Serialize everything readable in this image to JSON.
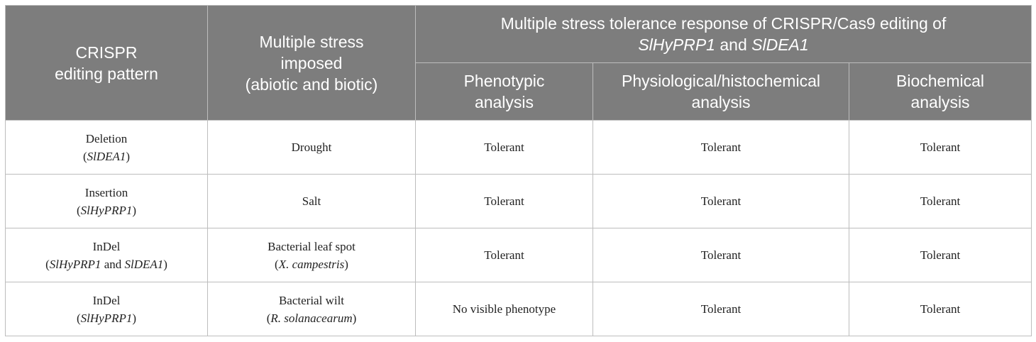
{
  "header": {
    "col1": [
      "CRISPR",
      "editing pattern"
    ],
    "col2": [
      "Multiple stress",
      "imposed",
      "(abiotic and biotic)"
    ],
    "group": {
      "line1": "Multiple stress tolerance response of CRISPR/Cas9 editing of",
      "gene1": "SlHyPRP1",
      "and": " and ",
      "gene2": "SlDEA1"
    },
    "sub1": [
      "Phenotypic",
      "analysis"
    ],
    "sub2": [
      "Physiological/histochemical",
      "analysis"
    ],
    "sub3": [
      "Biochemical",
      "analysis"
    ]
  },
  "rows": [
    {
      "pattern": "Deletion",
      "genes": [
        {
          "text": "(",
          "italic": false
        },
        {
          "text": "SlDEA1",
          "italic": true
        },
        {
          "text": ")",
          "italic": false
        }
      ],
      "stress": "Drought",
      "stress_detail": "",
      "phenotypic": "Tolerant",
      "physiological": "Tolerant",
      "biochemical": "Tolerant"
    },
    {
      "pattern": "Insertion",
      "genes": [
        {
          "text": "(",
          "italic": false
        },
        {
          "text": "SlHyPRP1",
          "italic": true
        },
        {
          "text": ")",
          "italic": false
        }
      ],
      "stress": "Salt",
      "stress_detail": "",
      "phenotypic": "Tolerant",
      "physiological": "Tolerant",
      "biochemical": "Tolerant"
    },
    {
      "pattern": "InDel",
      "genes": [
        {
          "text": "(",
          "italic": false
        },
        {
          "text": "SlHyPRP1",
          "italic": true
        },
        {
          "text": " and ",
          "italic": false
        },
        {
          "text": "SlDEA1",
          "italic": true
        },
        {
          "text": ")",
          "italic": false
        }
      ],
      "stress": "Bacterial leaf spot",
      "stress_detail_parts": [
        {
          "text": "(",
          "italic": false
        },
        {
          "text": "X. campestris",
          "italic": true
        },
        {
          "text": ")",
          "italic": false
        }
      ],
      "phenotypic": "Tolerant",
      "physiological": "Tolerant",
      "biochemical": "Tolerant"
    },
    {
      "pattern": "InDel",
      "genes": [
        {
          "text": "(",
          "italic": false
        },
        {
          "text": "SlHyPRP1",
          "italic": true
        },
        {
          "text": ")",
          "italic": false
        }
      ],
      "stress": "Bacterial wilt",
      "stress_detail_parts": [
        {
          "text": "(",
          "italic": false
        },
        {
          "text": "R. solanacearum",
          "italic": true
        },
        {
          "text": ")",
          "italic": false
        }
      ],
      "phenotypic": "No visible phenotype",
      "physiological": "Tolerant",
      "biochemical": "Tolerant"
    }
  ]
}
